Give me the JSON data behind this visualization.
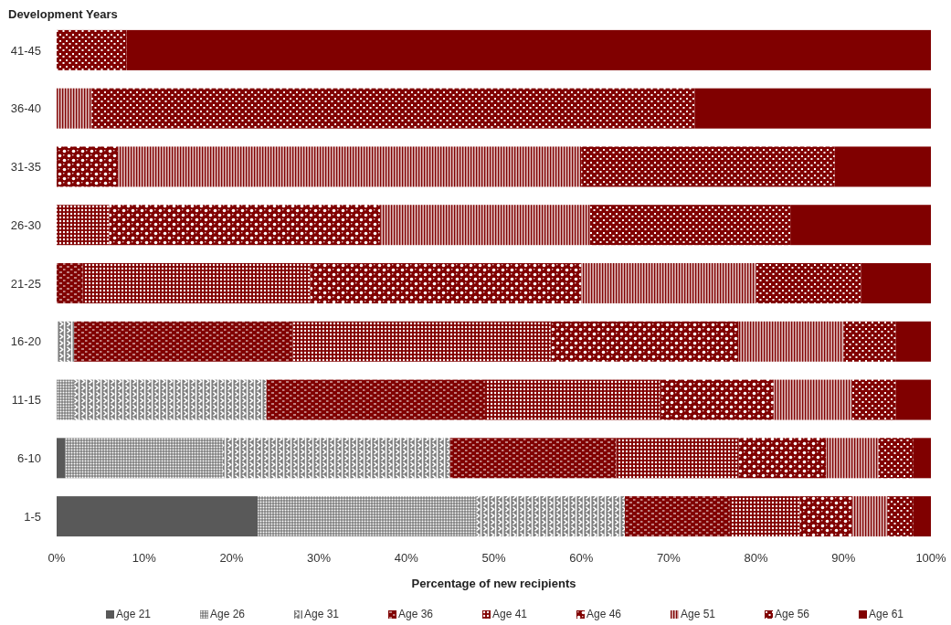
{
  "chart_data": {
    "type": "bar",
    "orientation": "horizontal",
    "stacked": true,
    "ylabel": "Development Years",
    "xlabel": "Percentage of new recipients",
    "categories": [
      "41-45",
      "36-40",
      "31-35",
      "26-30",
      "21-25",
      "16-20",
      "11-15",
      "6-10",
      "1-5"
    ],
    "series": [
      {
        "name": "Age 21",
        "color": "#595959",
        "values": [
          null,
          null,
          null,
          null,
          null,
          null,
          null,
          1,
          23
        ]
      },
      {
        "name": "Age 26",
        "color": "#7f7f7f",
        "values": [
          null,
          null,
          null,
          null,
          null,
          null,
          2,
          18,
          25
        ]
      },
      {
        "name": "Age 31",
        "color": "#7f7f7f",
        "values": [
          null,
          null,
          null,
          null,
          null,
          2,
          22,
          26,
          17
        ]
      },
      {
        "name": "Age 36",
        "color": "#800000",
        "values": [
          null,
          null,
          null,
          null,
          3,
          25,
          25,
          19,
          12
        ]
      },
      {
        "name": "Age 41",
        "color": "#800000",
        "values": [
          null,
          null,
          null,
          6,
          26,
          29.5,
          20,
          14,
          8
        ]
      },
      {
        "name": "Age 46",
        "color": "#800000",
        "values": [
          null,
          null,
          7,
          31,
          31,
          21.5,
          13,
          10,
          6
        ]
      },
      {
        "name": "Age 51",
        "color": "#800000",
        "values": [
          null,
          4,
          53,
          24,
          20,
          12,
          9,
          6,
          4
        ]
      },
      {
        "name": "Age 56",
        "color": "#800000",
        "values": [
          8,
          69,
          29,
          23,
          12,
          6,
          5,
          4,
          3
        ]
      },
      {
        "name": "Age 61",
        "color": "#800000",
        "values": [
          92,
          27,
          11,
          16,
          8,
          4,
          4,
          2,
          2
        ]
      }
    ],
    "xlim": [
      0,
      100
    ],
    "xticks": [
      {
        "value": 0,
        "label": "0%"
      },
      {
        "value": 10,
        "label": "10%"
      },
      {
        "value": 20,
        "label": "20%"
      },
      {
        "value": 30,
        "label": "30%"
      },
      {
        "value": 40,
        "label": "40%"
      },
      {
        "value": 50,
        "label": "50%"
      },
      {
        "value": 60,
        "label": "60%"
      },
      {
        "value": 70,
        "label": "70%"
      },
      {
        "value": 80,
        "label": "80%"
      },
      {
        "value": 90,
        "label": "90%"
      },
      {
        "value": 100,
        "label": "100%"
      }
    ],
    "legend": "bottom"
  }
}
